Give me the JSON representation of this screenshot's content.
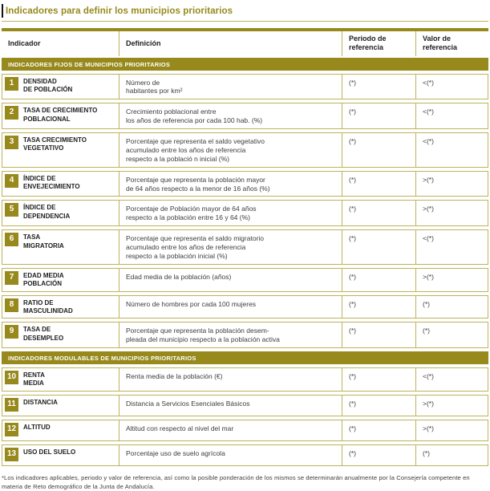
{
  "page": {
    "title": "Indicadores para definir los municipios prioritarios",
    "footnote": "*Los indicadores aplicables, periodo y valor de referencia, así como la posible ponderación de los mismos se determinarán anualmente por la Consejería competente en materia de Reto demográfico de la Junta de Andalucía."
  },
  "colors": {
    "brand_olive": "#97891c",
    "border_khaki": "#bdb35c",
    "header_text": "#1e1e1e",
    "body_text": "#3d3d3d"
  },
  "table": {
    "headers": [
      "Indicador",
      "Definición",
      "Periodo de\nreferencia",
      "Valor de\nreferencia"
    ],
    "sections": [
      {
        "label": "INDICADORES FIJOS DE MUNICIPIOS PRIORITARIOS",
        "rows": [
          {
            "num": "1",
            "name": "DENSIDAD\nDE POBLACIÓN",
            "definition": "Número de\nhabitantes por km²",
            "periodo": "(*)",
            "valor": "<(*)"
          },
          {
            "num": "2",
            "name": "TASA DE CRECIMIENTO\nPOBLACIONAL",
            "definition": "Crecimiento poblacional entre\nlos años de referencia por cada 100 hab. (%)",
            "periodo": "(*)",
            "valor": "<(*)"
          },
          {
            "num": "3",
            "name": "TASA CRECIMIENTO\nVEGETATIVO",
            "definition": "Porcentaje que representa el saldo vegetativo\nacumulado entre los años de referencia\nrespecto a la població n inicial (%)",
            "periodo": "(*)",
            "valor": "<(*)"
          },
          {
            "num": "4",
            "name": "ÍNDICE DE\nENVEJECIMIENTO",
            "definition": "Porcentaje que representa la población mayor\nde 64 años respecto a la menor de 16 años (%)",
            "periodo": "(*)",
            "valor": ">(*)"
          },
          {
            "num": "5",
            "name": "ÍNDICE DE\nDEPENDENCIA",
            "definition": "Porcentaje de Población mayor de 64 años\nrespecto a la población entre 16 y 64 (%)",
            "periodo": "(*)",
            "valor": ">(*)"
          },
          {
            "num": "6",
            "name": "TASA\nMIGRATORIA",
            "definition": "Porcentaje que representa el saldo migratorio\nacumulado entre los años de referencia\nrespecto a la población inicial (%)",
            "periodo": "(*)",
            "valor": "<(*)"
          },
          {
            "num": "7",
            "name": "EDAD MEDIA\nPOBLACIÓN",
            "definition": "Edad media de la población (años)",
            "periodo": "(*)",
            "valor": ">(*)"
          },
          {
            "num": "8",
            "name": "RATIO DE\nMASCULINIDAD",
            "definition": "Número de hombres por cada 100 mujeres",
            "periodo": "(*)",
            "valor": "(*)"
          },
          {
            "num": "9",
            "name": "TASA DE\nDESEMPLEO",
            "definition": "Porcentaje que representa la población desem-\npleada del municipio respecto a la población activa",
            "periodo": "(*)",
            "valor": "(*)"
          }
        ]
      },
      {
        "label": "INDICADORES MODULABLES DE MUNICIPIOS PRIORITARIOS",
        "rows": [
          {
            "num": "10",
            "name": "RENTA\nMEDIA",
            "definition": "Renta media de la población (€)",
            "periodo": "(*)",
            "valor": "<(*)"
          },
          {
            "num": "11",
            "name": "DISTANCIA",
            "definition": "Distancia a Servicios Esenciales Básicos",
            "periodo": "(*)",
            "valor": ">(*)"
          },
          {
            "num": "12",
            "name": "ALTITUD",
            "definition": "Altitud con respecto al nivel del mar",
            "periodo": "(*)",
            "valor": ">(*)"
          },
          {
            "num": "13",
            "name": "USO DEL SUELO",
            "definition": "Porcentaje uso de suelo agrícola",
            "periodo": "(*)",
            "valor": "(*)"
          }
        ]
      }
    ]
  }
}
